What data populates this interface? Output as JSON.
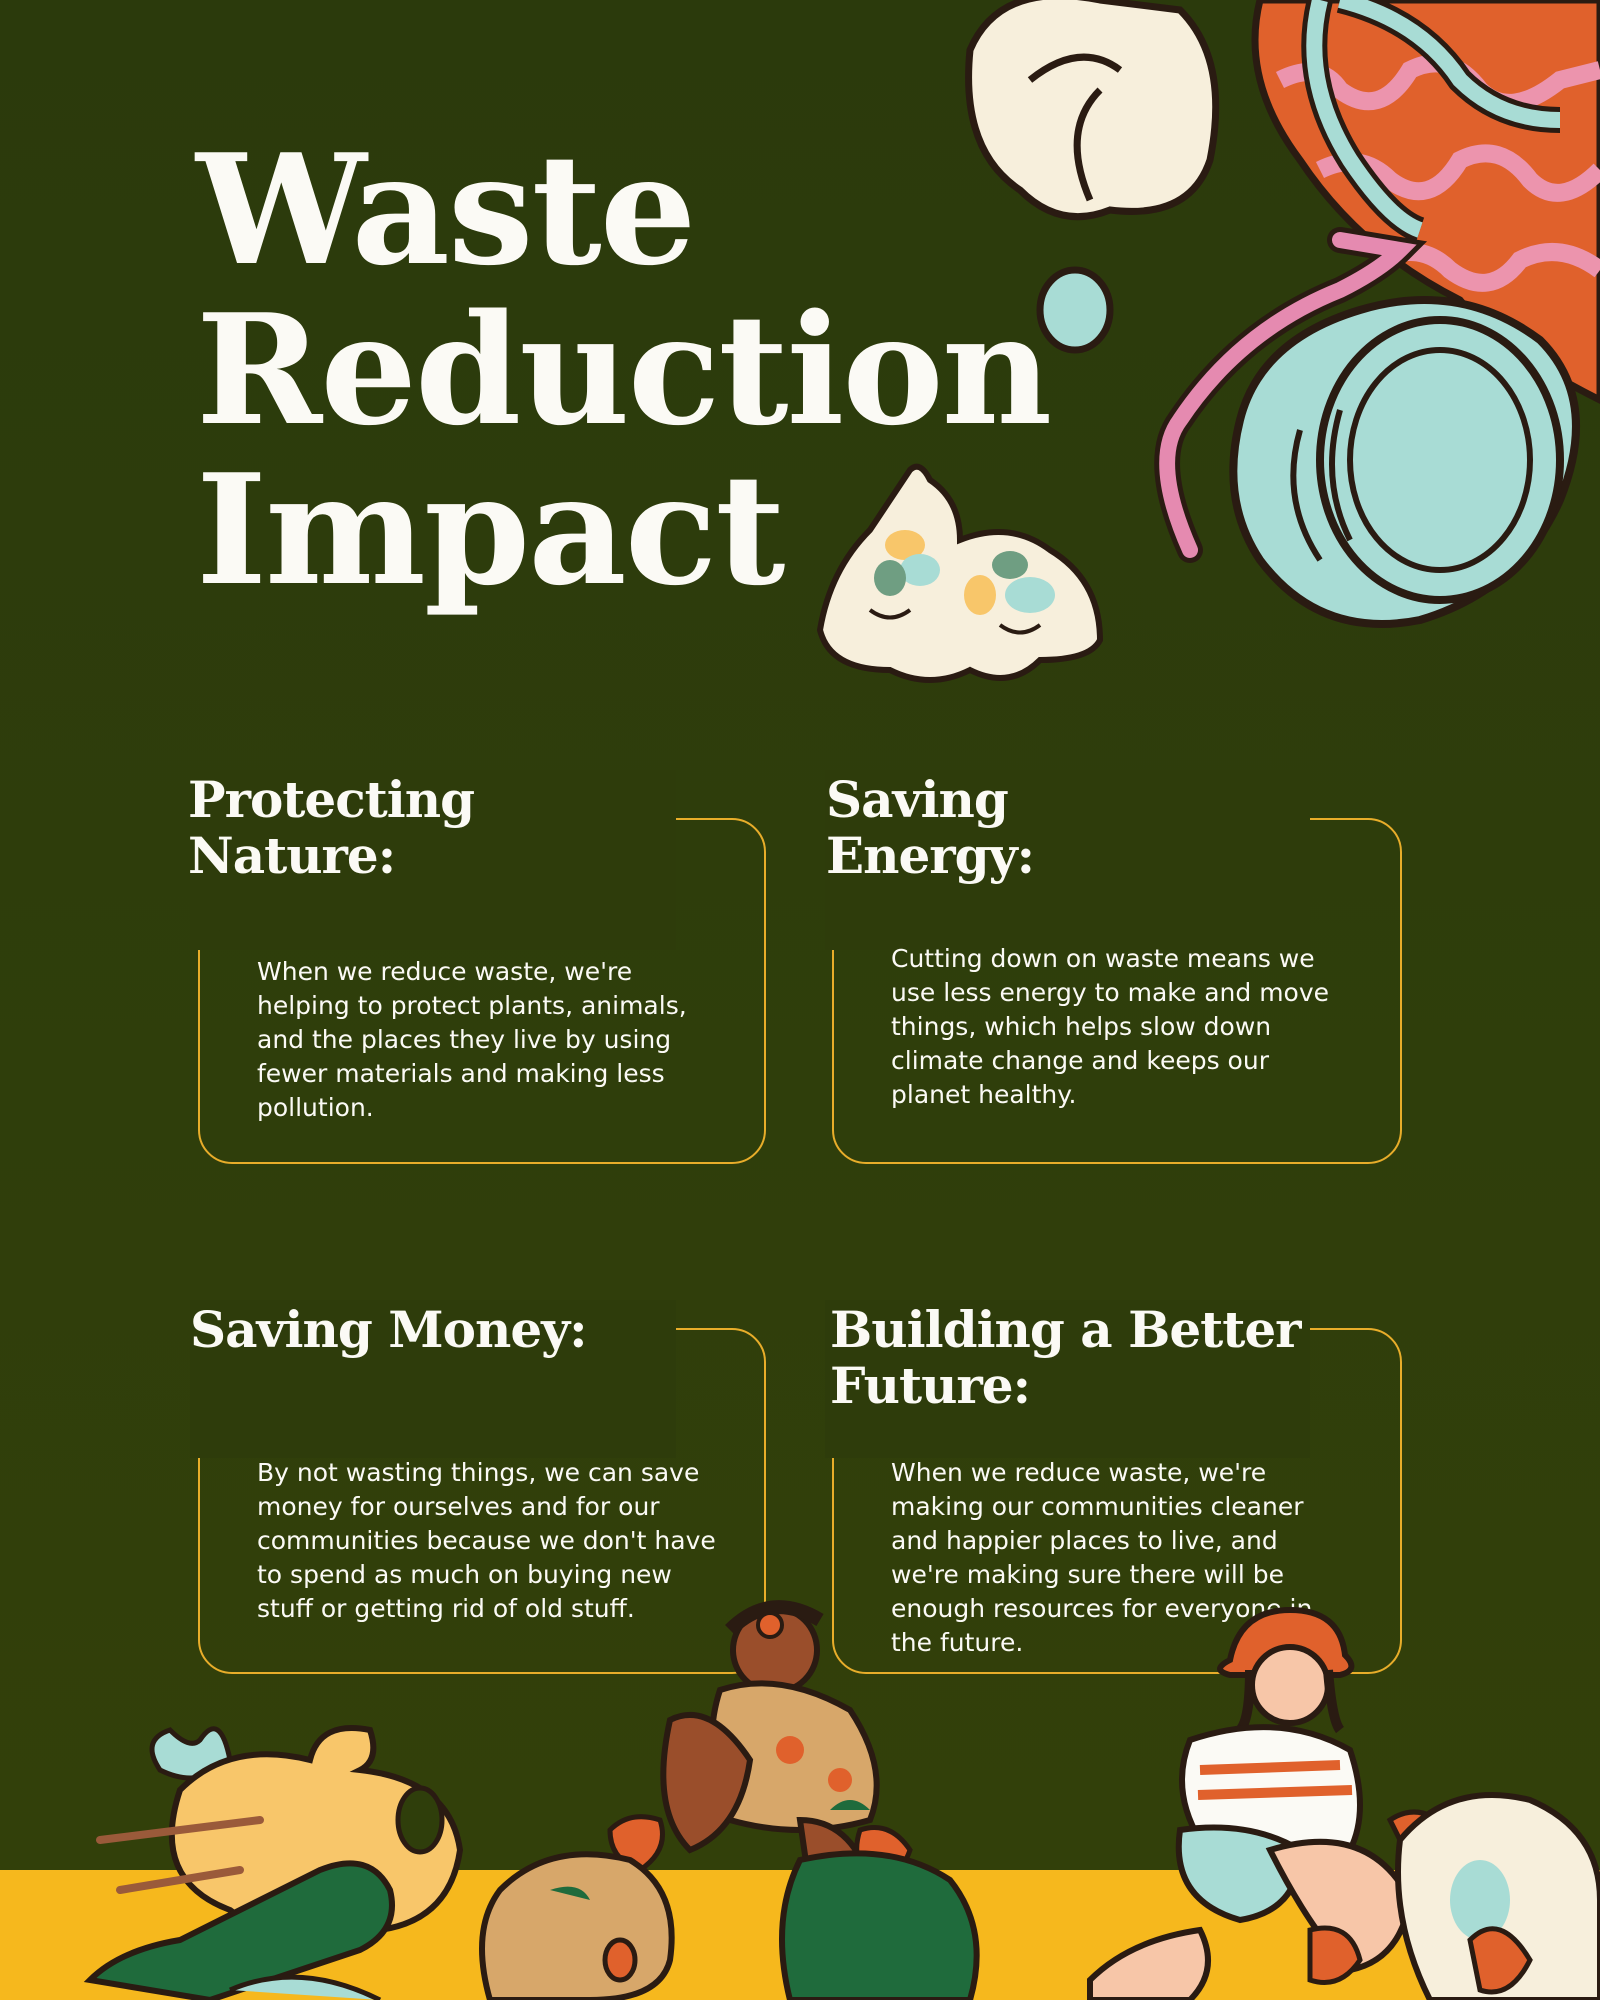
{
  "title": {
    "line1": "Waste",
    "line2": "Reduction",
    "line3": "Impact"
  },
  "cards": [
    {
      "heading_line1": "Protecting",
      "heading_line2": "Nature:",
      "body": "When we reduce waste, we're helping to protect plants, animals, and the places they live by using fewer materials and making less pollution."
    },
    {
      "heading_line1": "Saving",
      "heading_line2": "Energy:",
      "body": "Cutting down on waste means we use less energy to make and move things, which helps slow down climate change and keeps our planet healthy."
    },
    {
      "heading_line1": "Saving Money:",
      "heading_line2": "",
      "body": "By not wasting things, we can save money for ourselves and for our communities because we don't have to spend as much on buying new stuff or getting rid of old stuff."
    },
    {
      "heading_line1": "Building a Better",
      "heading_line2": "Future:",
      "body": "When we reduce waste, we're making our communities cleaner and happier places to live, and we're making sure there will be enough resources for everyone in the future."
    }
  ],
  "colors": {
    "background": "#2f3e0b",
    "accent_border": "#e8ad2a",
    "text": "#fbfaf5",
    "ground": "#f6b81d"
  },
  "illustrations": [
    "trash-bags-illustration",
    "plastic-cup-and-straw-illustration",
    "people-picking-up-trash-illustration",
    "bottles-illustration"
  ]
}
